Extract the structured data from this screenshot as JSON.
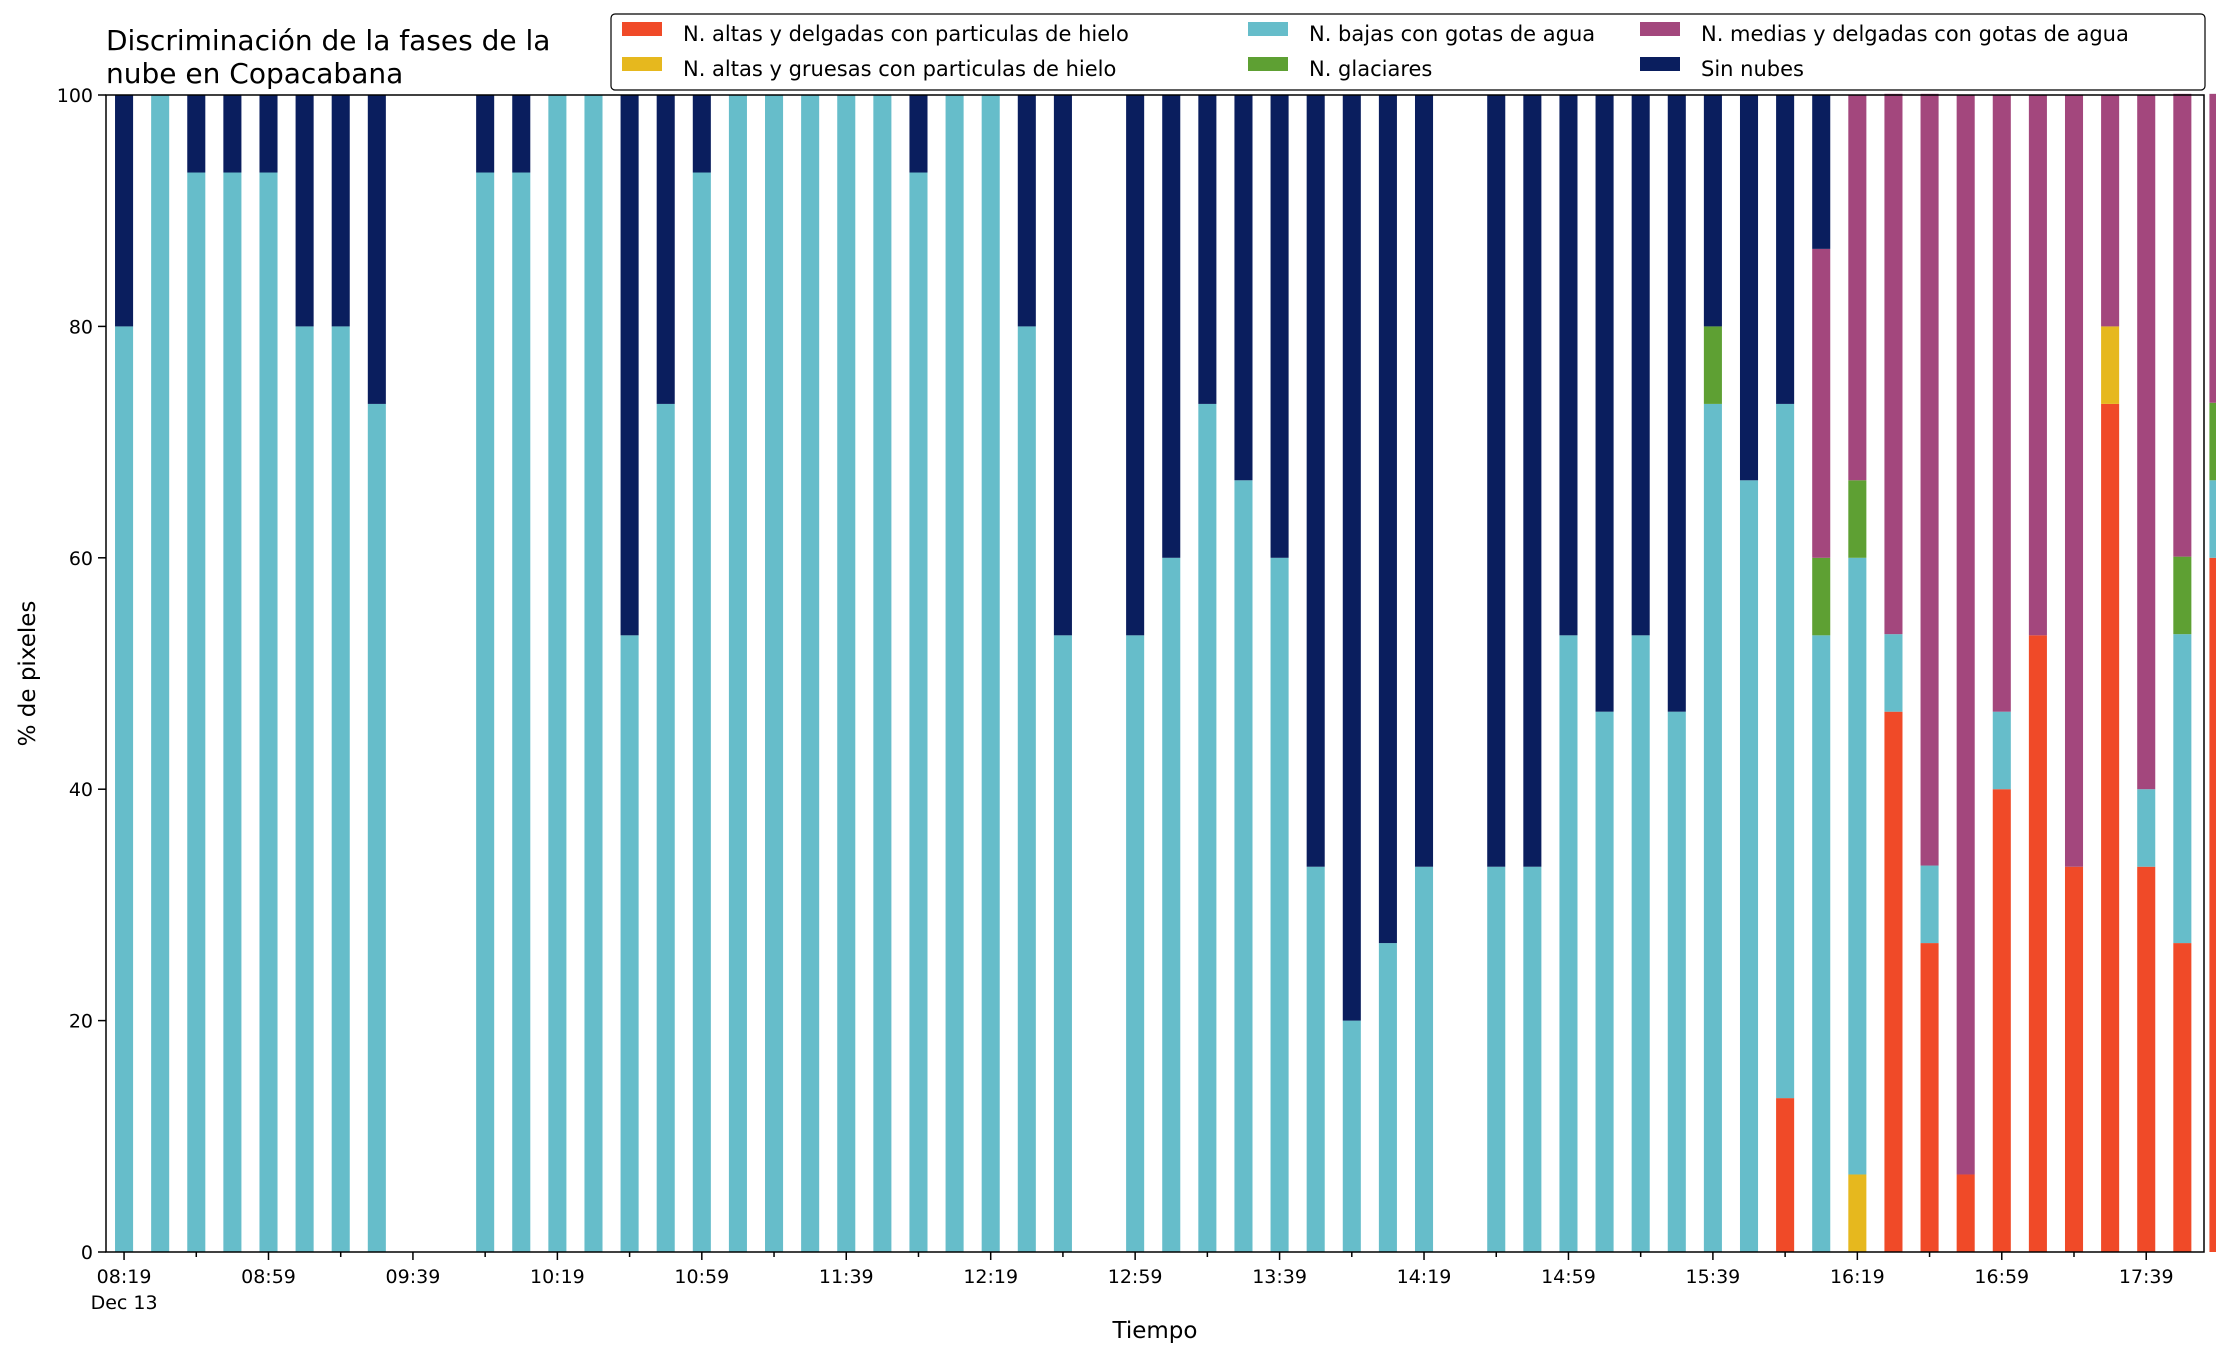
{
  "chart_data": {
    "type": "bar",
    "stacked": true,
    "title_lines": [
      "Discriminación de la fases de la",
      "nube en Copacabana"
    ],
    "xlabel": "Tiempo",
    "ylabel": "% de pixeles",
    "ylim": [
      0,
      100
    ],
    "yticks": [
      "0",
      "20",
      "40",
      "60",
      "80",
      "100"
    ],
    "xlim_minutes": [
      494,
      1075
    ],
    "bar_interval_minutes": 10,
    "bar_start": "08:19",
    "xtick_labels": [
      "08:19",
      "08:59",
      "09:39",
      "10:19",
      "10:59",
      "11:39",
      "12:19",
      "12:59",
      "13:39",
      "14:19",
      "14:59",
      "15:39",
      "16:19",
      "16:59",
      "17:39"
    ],
    "xtick_date_label": "Dec 13",
    "grid": false,
    "legend_position": "top-right",
    "series": [
      {
        "name": "N. altas y delgadas con particulas de hielo",
        "color": "#f04a28",
        "values": [
          0,
          0,
          0,
          0,
          0,
          0,
          0,
          0,
          null,
          null,
          0,
          0,
          0,
          0,
          0,
          0,
          0,
          0,
          0,
          0,
          0,
          0,
          0,
          0,
          0,
          0,
          null,
          0,
          0,
          0,
          0,
          0,
          0,
          0,
          0,
          0,
          null,
          0,
          0,
          0,
          0,
          0,
          0,
          0,
          0,
          0,
          13.3,
          0,
          0,
          46.7,
          26.7,
          6.7,
          40,
          53.3,
          33.3,
          73.3,
          33.3,
          26.7,
          60
        ]
      },
      {
        "name": "N. altas y gruesas con particulas de hielo",
        "color": "#e6b81e",
        "values": [
          0,
          0,
          0,
          0,
          0,
          0,
          0,
          0,
          null,
          null,
          0,
          0,
          0,
          0,
          0,
          0,
          0,
          0,
          0,
          0,
          0,
          0,
          0,
          0,
          0,
          0,
          null,
          0,
          0,
          0,
          0,
          0,
          0,
          0,
          0,
          0,
          null,
          0,
          0,
          0,
          0,
          0,
          0,
          0,
          0,
          0,
          0,
          0,
          6.7,
          0,
          0,
          0,
          0,
          0,
          0,
          6.7,
          0,
          0,
          0
        ]
      },
      {
        "name": "N. bajas con gotas de agua",
        "color": "#66bdca",
        "values": [
          80,
          100,
          93.3,
          93.3,
          93.3,
          80,
          80,
          73.3,
          null,
          null,
          93.3,
          93.3,
          100,
          100,
          53.3,
          73.3,
          93.3,
          100,
          100,
          100,
          100,
          100,
          93.3,
          100,
          100,
          80,
          53.3,
          null,
          53.3,
          60,
          73.3,
          66.7,
          60,
          33.3,
          20,
          26.7,
          33.3,
          null,
          33.3,
          33.3,
          53.3,
          46.7,
          53.3,
          46.7,
          73.3,
          66.7,
          60,
          53.3,
          53.3,
          6.7,
          6.7,
          0,
          6.7,
          0,
          0,
          0,
          6.7,
          26.7,
          6.7
        ]
      },
      {
        "name": "N. glaciares",
        "color": "#5ea033",
        "values": [
          0,
          0,
          0,
          0,
          0,
          0,
          0,
          0,
          null,
          null,
          0,
          0,
          0,
          0,
          0,
          0,
          0,
          0,
          0,
          0,
          0,
          0,
          0,
          0,
          0,
          0,
          0,
          null,
          0,
          0,
          0,
          0,
          0,
          0,
          0,
          0,
          0,
          null,
          0,
          0,
          0,
          0,
          0,
          0,
          6.7,
          0,
          0,
          6.7,
          6.7,
          0,
          0,
          0,
          0,
          0,
          0,
          0,
          0,
          6.7,
          6.7
        ]
      },
      {
        "name": "N. medias y delgadas con gotas de agua",
        "color": "#a3477d",
        "values": [
          0,
          0,
          0,
          0,
          0,
          0,
          0,
          0,
          null,
          null,
          0,
          0,
          0,
          0,
          0,
          0,
          0,
          0,
          0,
          0,
          0,
          0,
          0,
          0,
          0,
          0,
          0,
          null,
          0,
          0,
          0,
          0,
          0,
          0,
          0,
          0,
          0,
          null,
          0,
          0,
          0,
          0,
          0,
          0,
          0,
          0,
          0,
          26.7,
          33.3,
          46.7,
          66.7,
          93.3,
          53.3,
          46.7,
          66.7,
          20,
          60,
          40,
          26.7
        ]
      },
      {
        "name": "Sin nubes",
        "color": "#0a1e5e",
        "values": [
          20,
          0,
          6.7,
          6.7,
          6.7,
          20,
          20,
          26.7,
          null,
          null,
          6.7,
          6.7,
          0,
          0,
          46.7,
          26.7,
          6.7,
          0,
          0,
          0,
          0,
          0,
          6.7,
          0,
          0,
          20,
          46.7,
          null,
          46.7,
          40,
          26.7,
          33.3,
          40,
          66.7,
          80,
          73.3,
          66.7,
          null,
          66.7,
          66.7,
          46.7,
          53.3,
          46.7,
          53.3,
          20,
          33.3,
          26.7,
          13.3,
          0,
          0,
          0,
          0,
          0,
          0,
          0,
          0,
          0,
          0,
          0
        ]
      }
    ]
  }
}
